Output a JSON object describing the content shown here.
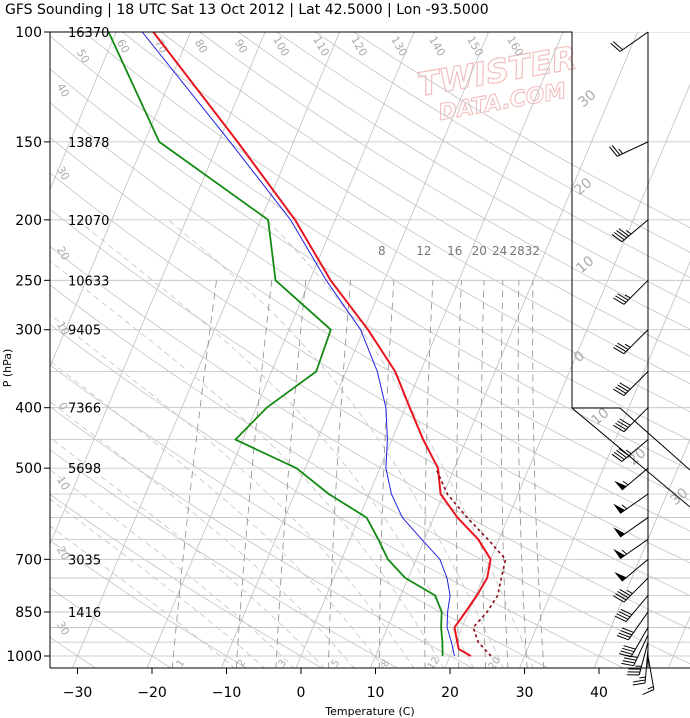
{
  "title": "GFS Sounding | 18 UTC Sat 13 Oct 2012 | Lat 42.5000 | Lon -93.5000",
  "watermark": {
    "line1": "TWISTER",
    "line2": "DATA.COM"
  },
  "colors": {
    "temperature": "#e8141e",
    "dewpoint": "#138a13",
    "virtual_temperature": "#2020e0",
    "parcel": "#8a0a14",
    "grid": "#bfbfbf",
    "adiabat": "#c4c4c4",
    "mixing_ratio": "#8c8c8c"
  },
  "chart_data": {
    "type": "line",
    "title": "GFS Sounding | 18 UTC Sat 13 Oct 2012 | Lat 42.5000 | Lon -93.5000",
    "xlabel": "Temperature (C)",
    "ylabel": "P (hPa)",
    "y_scale": "log",
    "y_reversed": true,
    "xlim": [
      -35,
      47
    ],
    "ylim": [
      1050,
      100
    ],
    "grid": true,
    "x_ticks": [
      "−30",
      "−20",
      "−10",
      "0",
      "10",
      "20",
      "30",
      "40"
    ],
    "x_tick_values": [
      -30,
      -20,
      -10,
      0,
      10,
      20,
      30,
      40
    ],
    "pressure_ticks": [
      {
        "p": 100,
        "label": "100",
        "height": "16370"
      },
      {
        "p": 150,
        "label": "150",
        "height": "13878"
      },
      {
        "p": 200,
        "label": "200",
        "height": "12070"
      },
      {
        "p": 250,
        "label": "250",
        "height": "10633"
      },
      {
        "p": 300,
        "label": "300",
        "height": "9405"
      },
      {
        "p": 400,
        "label": "400",
        "height": "7366"
      },
      {
        "p": 500,
        "label": "500",
        "height": "5698"
      },
      {
        "p": 700,
        "label": "700",
        "height": "3035"
      },
      {
        "p": 850,
        "label": "850",
        "height": "1416"
      },
      {
        "p": 1000,
        "label": "1000",
        "height": ""
      }
    ],
    "mixing_ratio_labels": [
      {
        "w": 8,
        "label": "8"
      },
      {
        "w": 12,
        "label": "12"
      },
      {
        "w": 16,
        "label": "16"
      },
      {
        "w": 20,
        "label": "20"
      },
      {
        "w": 24,
        "label": "24"
      },
      {
        "w": 28,
        "label": "28"
      },
      {
        "w": 32,
        "label": "32"
      }
    ],
    "dry_adiabat_labels": [
      {
        "theta": 50,
        "label": "50"
      },
      {
        "theta": 60,
        "label": "60"
      },
      {
        "theta": 70,
        "label": "70"
      },
      {
        "theta": 80,
        "label": "80"
      },
      {
        "theta": 90,
        "label": "90"
      },
      {
        "theta": 100,
        "label": "100"
      },
      {
        "theta": 110,
        "label": "110"
      },
      {
        "theta": 120,
        "label": "120"
      },
      {
        "theta": 130,
        "label": "130"
      },
      {
        "theta": 140,
        "label": "140"
      },
      {
        "theta": 150,
        "label": "150"
      },
      {
        "theta": 160,
        "label": "160"
      }
    ],
    "left_isotherm_labels": [
      "40",
      "30",
      "20",
      "10",
      "0",
      "10",
      "20",
      "30"
    ],
    "moist_labels": [
      "1",
      "2",
      "3",
      "5",
      "8",
      "12",
      "20"
    ],
    "hodograph_labels": [
      "30",
      "20",
      "10",
      "0",
      "10",
      "20",
      "30"
    ],
    "series": [
      {
        "name": "Temperature",
        "key": "temperature",
        "points": [
          [
            1000,
            22.8
          ],
          [
            975,
            20.8
          ],
          [
            950,
            20.2
          ],
          [
            900,
            19.0
          ],
          [
            850,
            19.6
          ],
          [
            800,
            20.2
          ],
          [
            750,
            20.6
          ],
          [
            700,
            20.0
          ],
          [
            650,
            17.2
          ],
          [
            600,
            13.2
          ],
          [
            550,
            9.6
          ],
          [
            500,
            7.8
          ],
          [
            450,
            4.2
          ],
          [
            400,
            0.6
          ],
          [
            350,
            -3.4
          ],
          [
            300,
            -9.4
          ],
          [
            250,
            -17.2
          ],
          [
            200,
            -25.4
          ],
          [
            150,
            -37.5
          ],
          [
            100,
            -55.0
          ]
        ]
      },
      {
        "name": "Virtual temperature",
        "key": "virtual_temperature",
        "points": [
          [
            1000,
            20.6
          ],
          [
            950,
            19.4
          ],
          [
            900,
            18.0
          ],
          [
            850,
            17.2
          ],
          [
            800,
            16.6
          ],
          [
            750,
            15.2
          ],
          [
            700,
            13.2
          ],
          [
            650,
            9.6
          ],
          [
            600,
            5.8
          ],
          [
            550,
            3.0
          ],
          [
            500,
            0.8
          ],
          [
            450,
            -0.6
          ],
          [
            400,
            -2.6
          ],
          [
            350,
            -5.8
          ],
          [
            300,
            -10.4
          ],
          [
            250,
            -17.8
          ],
          [
            200,
            -26.0
          ],
          [
            150,
            -38.5
          ],
          [
            100,
            -56.5
          ]
        ]
      },
      {
        "name": "Dewpoint",
        "key": "dewpoint",
        "points": [
          [
            1000,
            19.0
          ],
          [
            950,
            18.2
          ],
          [
            900,
            17.2
          ],
          [
            850,
            16.4
          ],
          [
            800,
            14.6
          ],
          [
            750,
            9.6
          ],
          [
            700,
            6.2
          ],
          [
            650,
            3.8
          ],
          [
            600,
            1.0
          ],
          [
            550,
            -5.4
          ],
          [
            500,
            -11.2
          ],
          [
            450,
            -21.0
          ],
          [
            400,
            -18.6
          ],
          [
            350,
            -14.0
          ],
          [
            300,
            -14.4
          ],
          [
            250,
            -24.6
          ],
          [
            200,
            -29.0
          ],
          [
            150,
            -48.0
          ],
          [
            100,
            -61.0
          ]
        ]
      },
      {
        "name": "Parcel",
        "key": "parcel",
        "dashed": true,
        "points": [
          [
            1000,
            25.5
          ],
          [
            950,
            23.0
          ],
          [
            900,
            21.5
          ],
          [
            850,
            22.5
          ],
          [
            800,
            23.0
          ],
          [
            750,
            22.5
          ],
          [
            700,
            22.0
          ],
          [
            650,
            18.5
          ],
          [
            600,
            14.5
          ],
          [
            550,
            10.5
          ],
          [
            500,
            7.5
          ]
        ]
      }
    ],
    "winds": [
      {
        "p": 1000,
        "dir": 170,
        "speed": 15
      },
      {
        "p": 975,
        "dir": 185,
        "speed": 25
      },
      {
        "p": 950,
        "dir": 195,
        "speed": 35
      },
      {
        "p": 925,
        "dir": 205,
        "speed": 40
      },
      {
        "p": 900,
        "dir": 210,
        "speed": 40
      },
      {
        "p": 850,
        "dir": 215,
        "speed": 40
      },
      {
        "p": 800,
        "dir": 220,
        "speed": 40
      },
      {
        "p": 750,
        "dir": 225,
        "speed": 45
      },
      {
        "p": 700,
        "dir": 230,
        "speed": 50
      },
      {
        "p": 650,
        "dir": 235,
        "speed": 55
      },
      {
        "p": 600,
        "dir": 235,
        "speed": 50
      },
      {
        "p": 550,
        "dir": 235,
        "speed": 55
      },
      {
        "p": 500,
        "dir": 230,
        "speed": 55
      },
      {
        "p": 450,
        "dir": 230,
        "speed": 45
      },
      {
        "p": 400,
        "dir": 225,
        "speed": 40
      },
      {
        "p": 350,
        "dir": 225,
        "speed": 40
      },
      {
        "p": 300,
        "dir": 225,
        "speed": 35
      },
      {
        "p": 250,
        "dir": 225,
        "speed": 35
      },
      {
        "p": 200,
        "dir": 230,
        "speed": 45
      },
      {
        "p": 150,
        "dir": 245,
        "speed": 25
      },
      {
        "p": 100,
        "dir": 235,
        "speed": 20
      }
    ]
  }
}
